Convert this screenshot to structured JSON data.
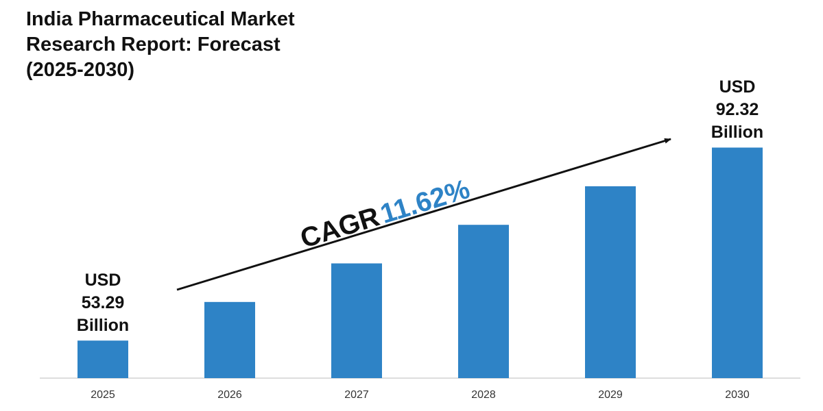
{
  "chart_data": {
    "type": "bar",
    "title": "India Pharmaceutical Market Research Report: Forecast (2025-2030)",
    "categories": [
      "2025",
      "2026",
      "2027",
      "2028",
      "2029",
      "2030"
    ],
    "values": [
      53.29,
      61.1,
      68.9,
      76.7,
      84.5,
      92.32
    ],
    "value_labels": [
      "USD 53.29 Billion",
      null,
      null,
      null,
      null,
      "USD 92.32 Billion"
    ],
    "color": "#2e83c6",
    "ylim": [
      45.7,
      100
    ],
    "annotation": {
      "label": "CAGR",
      "value": "11.62%",
      "value_color": "#2e83c6"
    }
  }
}
